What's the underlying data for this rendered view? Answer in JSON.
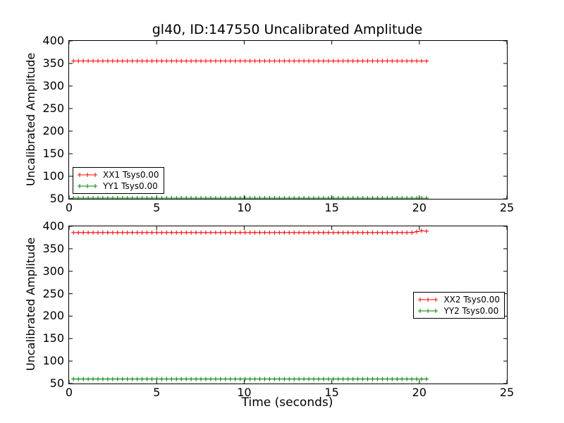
{
  "figure": {
    "title": "gl40, ID:147550 Uncalibrated Amplitude",
    "background_color": "#ffffff",
    "text_color": "#000000",
    "axes_border_color": "#000000"
  },
  "chart_data": [
    {
      "type": "line",
      "title": "",
      "xlabel": "",
      "ylabel": "Uncalibrated Amplitude",
      "xlim": [
        0,
        25
      ],
      "ylim": [
        50,
        400
      ],
      "xticks": [
        0,
        5,
        10,
        15,
        20,
        25
      ],
      "yticks": [
        50,
        100,
        150,
        200,
        250,
        300,
        350,
        400
      ],
      "grid": false,
      "legend_position": "lower-left",
      "series": [
        {
          "name": "XX1 Tsys0.00",
          "color": "#ff0000",
          "marker": "plus",
          "x_start": 0.25,
          "x_end": 20.5,
          "x_step": 0.28,
          "y_constant": 355.5
        },
        {
          "name": "YY1 Tsys0.00",
          "color": "#008000",
          "marker": "plus",
          "x_start": 0.25,
          "x_end": 20.5,
          "x_step": 0.28,
          "y_constant": 51.5
        }
      ]
    },
    {
      "type": "line",
      "title": "",
      "xlabel": "Time (seconds)",
      "ylabel": "Uncalibrated Amplitude",
      "xlim": [
        0,
        25
      ],
      "ylim": [
        50,
        400
      ],
      "xticks": [
        0,
        5,
        10,
        15,
        20,
        25
      ],
      "yticks": [
        50,
        100,
        150,
        200,
        250,
        300,
        350,
        400
      ],
      "grid": false,
      "legend_position": "center-right",
      "series": [
        {
          "name": "XX2 Tsys0.00",
          "color": "#ff0000",
          "marker": "plus",
          "x_start": 0.25,
          "x_end": 20.5,
          "x_step": 0.28,
          "y_constant": 386,
          "y_tail": [
            388,
            390,
            389
          ]
        },
        {
          "name": "YY2 Tsys0.00",
          "color": "#008000",
          "marker": "plus",
          "x_start": 0.25,
          "x_end": 20.5,
          "x_step": 0.28,
          "y_constant": 60
        }
      ]
    }
  ]
}
